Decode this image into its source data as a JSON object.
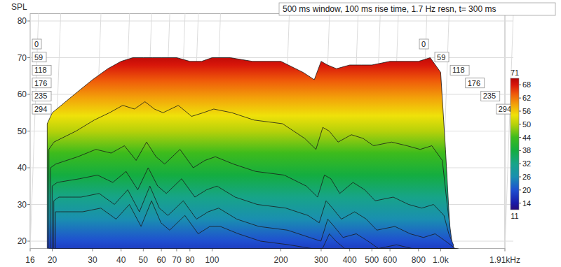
{
  "chart_data": {
    "type": "waterfall",
    "title": "500 ms window, 100 ms rise time, 1.7 Hz resn, t= 300 ms",
    "y_label": "SPL",
    "log": "x",
    "grid": true,
    "x": [
      19,
      20,
      25,
      30,
      35,
      40,
      45,
      50,
      55,
      60,
      70,
      80,
      90,
      100,
      120,
      150,
      200,
      250,
      280,
      300,
      320,
      350,
      400,
      450,
      500,
      600,
      700,
      800,
      900,
      1000,
      1050,
      1100
    ],
    "xlim": [
      16,
      1910
    ],
    "xticks": [
      16,
      20,
      30,
      40,
      50,
      60,
      70,
      80,
      100,
      200,
      300,
      400,
      500,
      600,
      800,
      {
        "value": 1000,
        "label": "1.0k"
      },
      {
        "value": 1910,
        "label": "1.91kHz"
      }
    ],
    "ylim": [
      18,
      82
    ],
    "yticks": [
      20,
      30,
      40,
      50,
      60,
      70,
      80
    ],
    "zlim": [
      0,
      300
    ],
    "zticks": [
      0,
      59,
      118,
      176,
      235,
      294
    ],
    "series": [
      {
        "z": 0,
        "values": [
          52,
          55,
          60,
          64,
          67,
          69,
          70,
          70,
          70,
          70,
          70,
          69,
          69,
          70,
          70,
          69,
          69,
          66,
          64,
          69,
          68,
          67,
          68,
          68,
          68,
          69,
          69,
          69,
          70,
          66,
          45,
          22
        ]
      },
      {
        "z": 59,
        "values": [
          45,
          47,
          50,
          53,
          55,
          57,
          56,
          58,
          56,
          55,
          57,
          54,
          55,
          56,
          55,
          53,
          52,
          48,
          45,
          51,
          50,
          47,
          49,
          48,
          46,
          47,
          46,
          45,
          46,
          42,
          30,
          20
        ]
      },
      {
        "z": 118,
        "values": [
          40,
          41,
          43,
          45,
          44,
          46,
          42,
          47,
          43,
          41,
          45,
          40,
          42,
          43,
          41,
          39,
          38,
          35,
          32,
          38,
          37,
          33,
          36,
          34,
          31,
          32,
          30,
          29,
          30,
          27,
          22,
          19
        ]
      },
      {
        "z": 176,
        "values": [
          35,
          36,
          37,
          38,
          36,
          39,
          34,
          40,
          35,
          33,
          37,
          32,
          34,
          35,
          32,
          30,
          29,
          27,
          25,
          31,
          29,
          26,
          28,
          26,
          23,
          24,
          22,
          21,
          22,
          20,
          19,
          18
        ]
      },
      {
        "z": 235,
        "values": [
          31,
          32,
          32,
          33,
          30,
          34,
          28,
          35,
          29,
          27,
          31,
          26,
          28,
          29,
          26,
          24,
          23,
          21,
          20,
          26,
          24,
          21,
          22,
          20,
          18,
          19,
          18,
          18,
          18,
          18,
          18,
          18
        ]
      },
      {
        "z": 294,
        "values": [
          28,
          28,
          28,
          29,
          26,
          30,
          24,
          31,
          25,
          23,
          27,
          22,
          24,
          24,
          22,
          20,
          19,
          18,
          18,
          22,
          20,
          18,
          18,
          18,
          18,
          18,
          18,
          18,
          18,
          18,
          18,
          18
        ]
      }
    ],
    "colorbar": {
      "range": [
        11,
        71
      ],
      "ticks": [
        14,
        20,
        26,
        32,
        38,
        44,
        50,
        56,
        62,
        68
      ]
    }
  }
}
